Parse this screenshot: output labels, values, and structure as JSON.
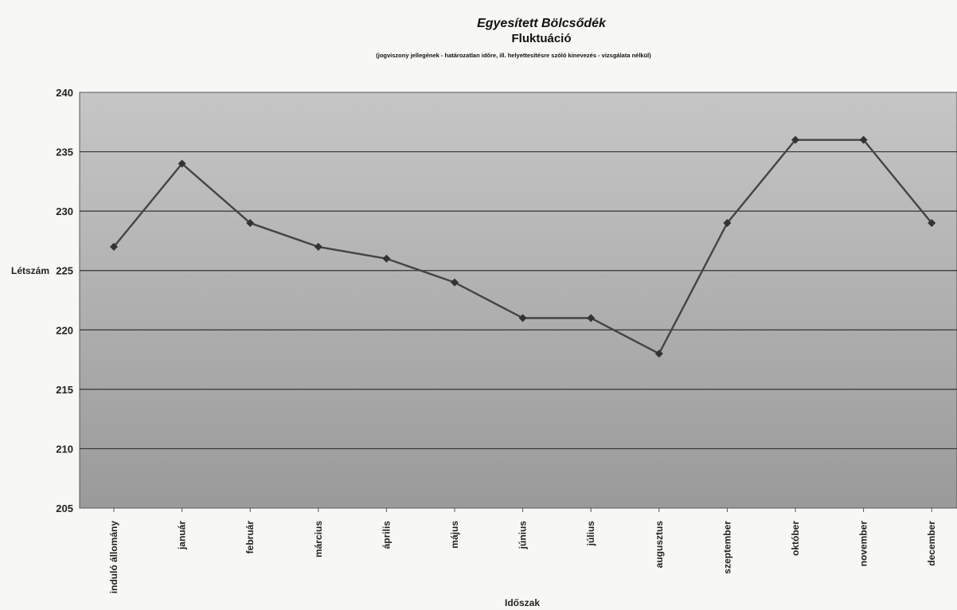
{
  "chart_data": {
    "type": "line",
    "title": "Egyesített Bölcsődék",
    "subtitle": "Fluktuáció",
    "note": "(jogviszony jellegének - határozatlan időre, ill. helyettesítésre szóló kinevezés - vizsgálata nélkül)",
    "xlabel": "Időszak",
    "ylabel": "Létszám",
    "ylim": [
      205,
      240
    ],
    "yticks": [
      205,
      210,
      215,
      220,
      225,
      230,
      235,
      240
    ],
    "grid": true,
    "categories": [
      "induló állomány",
      "január",
      "február",
      "március",
      "április",
      "május",
      "június",
      "július",
      "augusztus",
      "szeptember",
      "október",
      "november",
      "december"
    ],
    "values": [
      227,
      234,
      229,
      227,
      226,
      224,
      221,
      221,
      218,
      229,
      236,
      236,
      229
    ],
    "colors": {
      "line": "#444444",
      "marker": "#333333",
      "grid": "#333333",
      "plot_top": "#c4c4c4",
      "plot_bottom": "#989898"
    }
  }
}
